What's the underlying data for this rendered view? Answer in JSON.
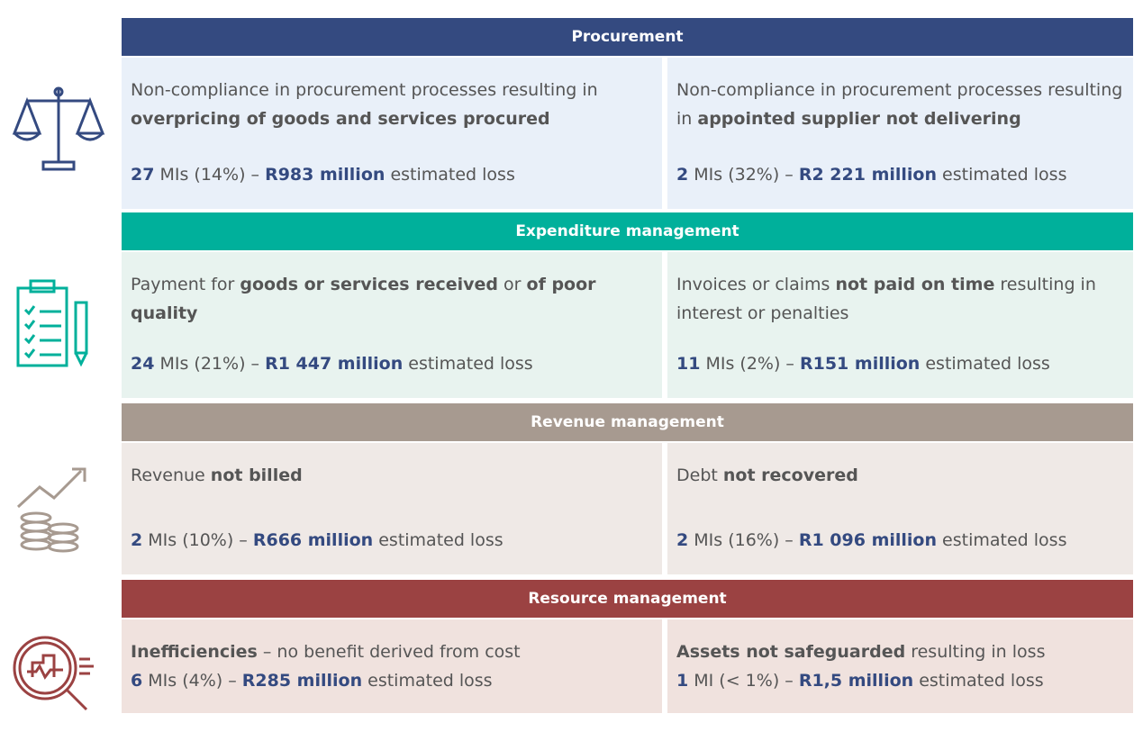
{
  "sections": [
    {
      "title": "Procurement",
      "header_color": "#344a80",
      "cell_color": "#e9f0f9",
      "icon_color": "#344a80",
      "cells": [
        {
          "description": [
            {
              "text": "Non-compliance in procurement processes resulting in ",
              "bold": false
            },
            {
              "text": "overpricing of goods and services procured",
              "bold": true
            }
          ],
          "stats": [
            {
              "text": "27",
              "accent": true
            },
            {
              "text": " MIs (14%) – ",
              "accent": false
            },
            {
              "text": "R983 million",
              "accent": true
            },
            {
              "text": " estimated loss",
              "accent": false
            }
          ]
        },
        {
          "description": [
            {
              "text": "Non-compliance in procurement processes resulting in ",
              "bold": false
            },
            {
              "text": "appointed supplier not delivering",
              "bold": true
            }
          ],
          "stats": [
            {
              "text": "2",
              "accent": true
            },
            {
              "text": " MIs (32%) – ",
              "accent": false
            },
            {
              "text": "R2 221 million",
              "accent": true
            },
            {
              "text": " estimated loss",
              "accent": false
            }
          ]
        }
      ]
    },
    {
      "title": "Expenditure management",
      "header_color": "#00b09b",
      "cell_color": "#e8f3ef",
      "icon_color": "#00b09b",
      "cells": [
        {
          "description": [
            {
              "text": "Payment for ",
              "bold": false
            },
            {
              "text": "goods or services received",
              "bold": true
            },
            {
              "text": " or ",
              "bold": false
            },
            {
              "text": "of poor quality",
              "bold": true
            }
          ],
          "stats": [
            {
              "text": "24",
              "accent": true
            },
            {
              "text": " MIs (21%) – ",
              "accent": false
            },
            {
              "text": "R1 447 million",
              "accent": true
            },
            {
              "text": " estimated loss",
              "accent": false
            }
          ]
        },
        {
          "description": [
            {
              "text": "Invoices or claims ",
              "bold": false
            },
            {
              "text": "not paid on time",
              "bold": true
            },
            {
              "text": " resulting in interest or penalties",
              "bold": false
            }
          ],
          "stats": [
            {
              "text": "11",
              "accent": true
            },
            {
              "text": " MIs (2%) – ",
              "accent": false
            },
            {
              "text": "R151 million",
              "accent": true
            },
            {
              "text": " estimated loss",
              "accent": false
            }
          ]
        }
      ]
    },
    {
      "title": "Revenue management",
      "header_color": "#a79a90",
      "cell_color": "#efe9e6",
      "icon_color": "#a79a90",
      "cells": [
        {
          "description": [
            {
              "text": "Revenue ",
              "bold": false
            },
            {
              "text": "not billed",
              "bold": true
            }
          ],
          "stats": [
            {
              "text": "2",
              "accent": true
            },
            {
              "text": " MIs (10%) – ",
              "accent": false
            },
            {
              "text": "R666 million",
              "accent": true
            },
            {
              "text": " estimated loss",
              "accent": false
            }
          ]
        },
        {
          "description": [
            {
              "text": "Debt ",
              "bold": false
            },
            {
              "text": "not recovered",
              "bold": true
            }
          ],
          "stats": [
            {
              "text": "2",
              "accent": true
            },
            {
              "text": " MIs (16%) – ",
              "accent": false
            },
            {
              "text": "R1 096 million",
              "accent": true
            },
            {
              "text": " estimated loss",
              "accent": false
            }
          ]
        }
      ]
    },
    {
      "title": "Resource management",
      "header_color": "#9b4242",
      "cell_color": "#f0e2de",
      "icon_color": "#9b4242",
      "cells": [
        {
          "description": [
            {
              "text": "Inefficiencies",
              "bold": true
            },
            {
              "text": " – no benefit derived from cost",
              "bold": false
            }
          ],
          "stats": [
            {
              "text": "6",
              "accent": true
            },
            {
              "text": " MIs (4%) – ",
              "accent": false
            },
            {
              "text": "R285 million",
              "accent": true
            },
            {
              "text": " estimated loss",
              "accent": false
            }
          ]
        },
        {
          "description": [
            {
              "text": "Assets not safeguarded",
              "bold": true
            },
            {
              "text": " resulting in loss",
              "bold": false
            }
          ],
          "stats": [
            {
              "text": "1",
              "accent": true
            },
            {
              "text": " MI (< 1%) – ",
              "accent": false
            },
            {
              "text": "R1,5 million",
              "accent": true
            },
            {
              "text": " estimated loss",
              "accent": false
            }
          ]
        }
      ]
    }
  ]
}
